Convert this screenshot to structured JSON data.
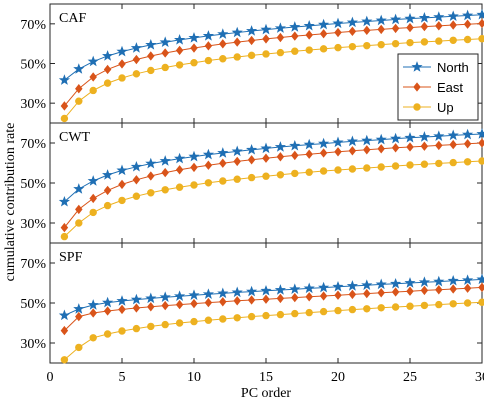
{
  "chart_data": {
    "type": "line",
    "xlabel": "PC order",
    "ylabel": "cumulative contribution rate",
    "xlim": [
      0,
      30
    ],
    "ylim": [
      20,
      80
    ],
    "x_ticks": [
      0,
      5,
      10,
      15,
      20,
      25,
      30
    ],
    "x_tick_labels": [
      "0",
      "5",
      "10",
      "15",
      "20",
      "25",
      "30"
    ],
    "y_ticks": [
      30,
      50,
      70
    ],
    "y_tick_labels": [
      "30%",
      "50%",
      "70%"
    ],
    "legend": {
      "placement": "right",
      "panel": 0,
      "entries": [
        "North",
        "East",
        "Up"
      ]
    },
    "series_colors": {
      "North": "#1f6fb4",
      "East": "#d9541a",
      "Up": "#edb120"
    },
    "markers": {
      "North": "star",
      "East": "diamond",
      "Up": "circle"
    },
    "x": [
      1,
      2,
      3,
      4,
      5,
      6,
      7,
      8,
      9,
      10,
      11,
      12,
      13,
      14,
      15,
      16,
      17,
      18,
      19,
      20,
      21,
      22,
      23,
      24,
      25,
      26,
      27,
      28,
      29,
      30
    ],
    "panels": [
      {
        "title": "CAF",
        "series": [
          {
            "name": "North",
            "values": [
              41.6,
              47.2,
              51.0,
              53.8,
              56.0,
              57.8,
              59.4,
              60.7,
              61.9,
              62.9,
              63.9,
              64.8,
              65.6,
              66.4,
              67.1,
              67.8,
              68.4,
              69.0,
              69.6,
              70.2,
              70.7,
              71.2,
              71.7,
              72.2,
              72.6,
              73.0,
              73.4,
              73.8,
              74.2,
              74.6
            ]
          },
          {
            "name": "East",
            "values": [
              28.6,
              37.3,
              43.2,
              47.0,
              49.8,
              52.0,
              53.8,
              55.3,
              56.6,
              57.8,
              58.9,
              59.9,
              60.8,
              61.6,
              62.4,
              63.1,
              63.8,
              64.4,
              65.0,
              65.6,
              66.2,
              66.7,
              67.2,
              67.7,
              68.1,
              68.6,
              69.0,
              69.4,
              69.8,
              70.2
            ]
          },
          {
            "name": "Up",
            "values": [
              22.3,
              31.0,
              36.4,
              40.1,
              42.7,
              44.8,
              46.5,
              48.0,
              49.3,
              50.4,
              51.5,
              52.4,
              53.3,
              54.1,
              54.8,
              55.5,
              56.2,
              56.8,
              57.4,
              58.0,
              58.5,
              59.0,
              59.5,
              60.0,
              60.5,
              60.9,
              61.3,
              61.7,
              62.1,
              62.5
            ]
          }
        ]
      },
      {
        "title": "CWT",
        "series": [
          {
            "name": "North",
            "values": [
              40.6,
              47.0,
              51.0,
              54.0,
              56.3,
              58.1,
              59.7,
              61.0,
              62.2,
              63.2,
              64.2,
              65.0,
              65.8,
              66.6,
              67.3,
              68.0,
              68.6,
              69.2,
              69.7,
              70.3,
              70.8,
              71.2,
              71.7,
              72.2,
              72.6,
              73.0,
              73.4,
              73.8,
              74.2,
              74.5
            ]
          },
          {
            "name": "East",
            "values": [
              27.7,
              36.8,
              42.3,
              46.3,
              49.3,
              51.6,
              53.5,
              55.2,
              56.6,
              57.8,
              58.9,
              59.9,
              60.8,
              61.6,
              62.4,
              63.1,
              63.8,
              64.4,
              65.0,
              65.6,
              66.1,
              66.6,
              67.1,
              67.6,
              68.0,
              68.4,
              68.8,
              69.2,
              69.6,
              70.0
            ]
          },
          {
            "name": "Up",
            "values": [
              23.2,
              30.0,
              35.3,
              38.7,
              41.3,
              43.4,
              45.1,
              46.6,
              47.9,
              49.0,
              50.1,
              51.0,
              51.9,
              52.7,
              53.4,
              54.1,
              54.8,
              55.4,
              56.0,
              56.5,
              57.0,
              57.5,
              58.0,
              58.5,
              59.0,
              59.4,
              59.8,
              60.2,
              60.6,
              61.0
            ]
          }
        ]
      },
      {
        "title": "SPF",
        "series": [
          {
            "name": "North",
            "values": [
              43.8,
              47.0,
              49.0,
              50.2,
              51.0,
              51.7,
              52.3,
              52.9,
              53.4,
              53.9,
              54.4,
              54.8,
              55.3,
              55.7,
              56.1,
              56.5,
              56.9,
              57.3,
              57.7,
              58.1,
              58.5,
              58.9,
              59.3,
              59.6,
              60.0,
              60.4,
              60.7,
              61.1,
              61.4,
              61.8
            ]
          },
          {
            "name": "East",
            "values": [
              36.2,
              43.2,
              45.0,
              46.0,
              46.8,
              47.5,
              48.1,
              48.7,
              49.2,
              49.7,
              50.2,
              50.6,
              51.1,
              51.5,
              51.9,
              52.3,
              52.7,
              53.1,
              53.5,
              53.9,
              54.3,
              54.7,
              55.1,
              55.5,
              55.9,
              56.3,
              56.6,
              57.0,
              57.4,
              57.8
            ]
          },
          {
            "name": "Up",
            "values": [
              21.6,
              27.8,
              32.6,
              34.5,
              36.0,
              37.2,
              38.3,
              39.2,
              40.0,
              40.7,
              41.4,
              42.0,
              42.6,
              43.2,
              43.7,
              44.2,
              44.7,
              45.2,
              45.7,
              46.2,
              46.7,
              47.1,
              47.6,
              48.0,
              48.4,
              48.8,
              49.2,
              49.6,
              50.0,
              50.4
            ]
          }
        ]
      }
    ]
  }
}
